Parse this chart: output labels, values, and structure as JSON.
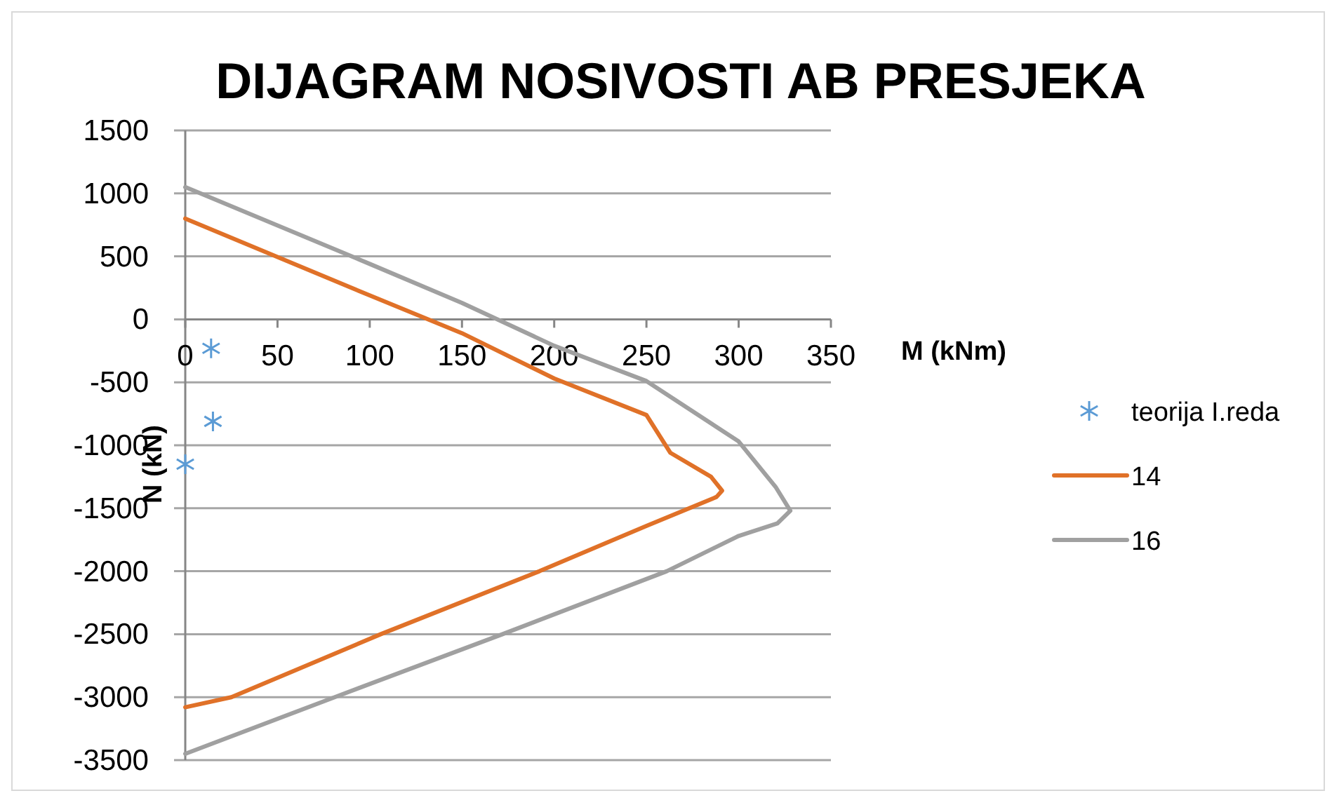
{
  "chart_data": {
    "type": "line",
    "title": "DIJAGRAM NOSIVOSTI AB PRESJEKA",
    "xlabel": "M (kNm)",
    "ylabel": "N (kN)",
    "xlim": [
      0,
      350
    ],
    "xticks": [
      0,
      50,
      100,
      150,
      200,
      250,
      300,
      350
    ],
    "ylim": [
      -3500,
      1500
    ],
    "yticks": [
      -3500,
      -3000,
      -2500,
      -2000,
      -1500,
      -1000,
      -500,
      0,
      500,
      1000,
      1500
    ],
    "grid": "y",
    "legend": "right",
    "line_style": "solid",
    "series": [
      {
        "name": "teorija I.reda",
        "type": "scatter",
        "marker": "cross",
        "color": "#5b9bd5",
        "x": [
          14,
          15,
          0
        ],
        "values": [
          -230,
          -810,
          -1150
        ]
      },
      {
        "name": "14",
        "color": "#e07128",
        "x": [
          0,
          100,
          150,
          200,
          250,
          263,
          285,
          291,
          288,
          250,
          192,
          106,
          25,
          0
        ],
        "values": [
          800,
          190,
          -110,
          -470,
          -760,
          -1060,
          -1250,
          -1360,
          -1410,
          -1640,
          -2000,
          -2500,
          -3000,
          -3080
        ]
      },
      {
        "name": "16",
        "color": "#a0a0a0",
        "x": [
          0,
          100,
          150,
          200,
          250,
          300,
          320,
          328,
          321,
          300,
          261,
          172,
          81,
          0
        ],
        "values": [
          1050,
          440,
          130,
          -210,
          -490,
          -970,
          -1330,
          -1520,
          -1620,
          -1720,
          -2000,
          -2500,
          -3000,
          -3450
        ]
      }
    ]
  }
}
